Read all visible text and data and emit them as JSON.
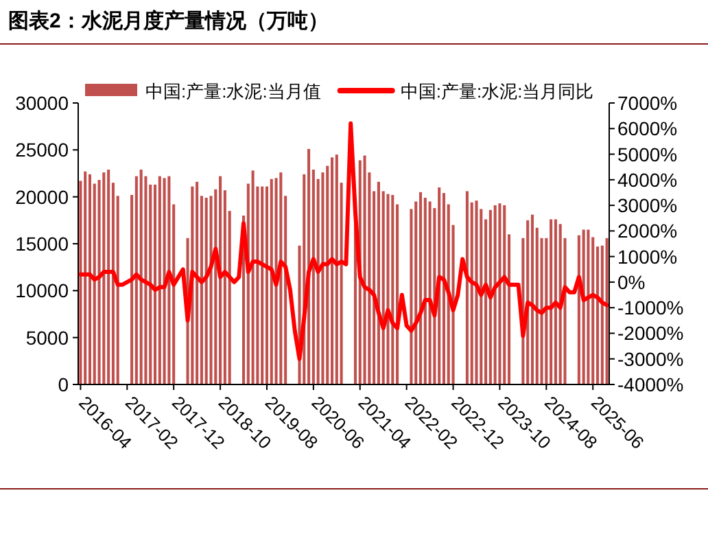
{
  "chart_data": {
    "type": "bar",
    "title": "图表2：水泥月度产量情况（万吨）",
    "categories": [
      "2016-04",
      null,
      null,
      null,
      null,
      null,
      null,
      null,
      null,
      null,
      "2017-02",
      null,
      null,
      null,
      null,
      null,
      null,
      null,
      null,
      null,
      "2017-12",
      null,
      null,
      null,
      null,
      null,
      null,
      null,
      null,
      null,
      "2018-10",
      null,
      null,
      null,
      null,
      null,
      null,
      null,
      null,
      null,
      "2019-08",
      null,
      null,
      null,
      null,
      null,
      null,
      null,
      null,
      null,
      "2020-06",
      null,
      null,
      null,
      null,
      null,
      null,
      null,
      null,
      null,
      "2021-04",
      null,
      null,
      null,
      null,
      null,
      null,
      null,
      null,
      null,
      "2022-02",
      null,
      null,
      null,
      null,
      null,
      null,
      null,
      null,
      null,
      "2022-12",
      null,
      null,
      null,
      null,
      null,
      null,
      null,
      null,
      null,
      "2023-10",
      null,
      null,
      null,
      null,
      null,
      null,
      null,
      null,
      null,
      "2024-08",
      null,
      null,
      null,
      null,
      null,
      null,
      null,
      null,
      null,
      "2025-06",
      null,
      null,
      null
    ],
    "series": [
      {
        "name": "中国:产量:水泥:当月值",
        "color": "#c0504d",
        "values": [
          21700,
          22700,
          22400,
          21400,
          21800,
          22600,
          22900,
          21500,
          20100,
          null,
          null,
          20200,
          22200,
          22900,
          22200,
          21300,
          21300,
          22200,
          22000,
          22200,
          19200,
          null,
          null,
          15600,
          21100,
          21600,
          20100,
          19900,
          20100,
          20800,
          22200,
          20700,
          18500,
          null,
          null,
          18000,
          21400,
          22800,
          21100,
          21100,
          21100,
          21900,
          22000,
          22600,
          20100,
          null,
          null,
          14800,
          22400,
          25100,
          22900,
          21900,
          22600,
          23300,
          24200,
          24500,
          21500,
          null,
          null,
          19900,
          23900,
          24400,
          22600,
          20600,
          21600,
          20600,
          20300,
          20200,
          19200,
          null,
          null,
          18700,
          19500,
          20500,
          19900,
          19500,
          18800,
          21000,
          20400,
          19200,
          17000,
          null,
          null,
          20600,
          19400,
          19600,
          18700,
          17600,
          18600,
          19100,
          19300,
          19100,
          16000,
          null,
          null,
          15600,
          17500,
          18100,
          16700,
          15600,
          15600,
          17600,
          17600,
          17100,
          15600,
          null,
          null,
          15900,
          16500,
          16500,
          15700,
          14700,
          14800,
          15600
        ]
      },
      {
        "name": "中国:产量:水泥:当月同比",
        "type": "line",
        "axis": "y2",
        "color": "#ff0000",
        "values": [
          300,
          300,
          300,
          100,
          200,
          400,
          400,
          400,
          -100,
          -100,
          0,
          100,
          300,
          100,
          0,
          -100,
          -300,
          -200,
          -200,
          400,
          -100,
          200,
          500,
          -1500,
          400,
          200,
          0,
          200,
          600,
          1300,
          200,
          400,
          200,
          0,
          200,
          2300,
          400,
          800,
          800,
          700,
          600,
          500,
          -100,
          800,
          600,
          -300,
          -1900,
          -3000,
          -1400,
          400,
          900,
          400,
          700,
          700,
          900,
          700,
          800,
          700,
          6200,
          2700,
          200,
          -200,
          -300,
          -500,
          -1200,
          -1800,
          -1100,
          -1600,
          -1800,
          -500,
          -1700,
          -1900,
          -1600,
          -1200,
          -700,
          -700,
          -1300,
          200,
          100,
          -400,
          -1100,
          -500,
          900,
          200,
          0,
          -100,
          -500,
          -100,
          -600,
          -200,
          0,
          200,
          -100,
          -100,
          -100,
          -2100,
          -800,
          -900,
          -1100,
          -1200,
          -1000,
          -1000,
          -800,
          -1000,
          -200,
          -400,
          -400,
          200,
          -700,
          -600,
          -500,
          -600,
          -800,
          -900
        ]
      }
    ],
    "ylim": [
      0,
      30000
    ],
    "yticks": [
      0,
      5000,
      10000,
      15000,
      20000,
      25000,
      30000
    ],
    "y2lim": [
      -4000,
      7000
    ],
    "y2ticks": [
      {
        "value": -4000,
        "label": "-4000%"
      },
      {
        "value": -3000,
        "label": "-3000%"
      },
      {
        "value": -2000,
        "label": "-2000%"
      },
      {
        "value": -1000,
        "label": "-1000%"
      },
      {
        "value": 0,
        "label": "0%"
      },
      {
        "value": 1000,
        "label": "1000%"
      },
      {
        "value": 2000,
        "label": "2000%"
      },
      {
        "value": 3000,
        "label": "3000%"
      },
      {
        "value": 4000,
        "label": "4000%"
      },
      {
        "value": 5000,
        "label": "5000%"
      },
      {
        "value": 6000,
        "label": "6000%"
      },
      {
        "value": 7000,
        "label": "7000%"
      }
    ],
    "legend": "top",
    "grid": false,
    "line_style": "solid",
    "marker": "none"
  }
}
